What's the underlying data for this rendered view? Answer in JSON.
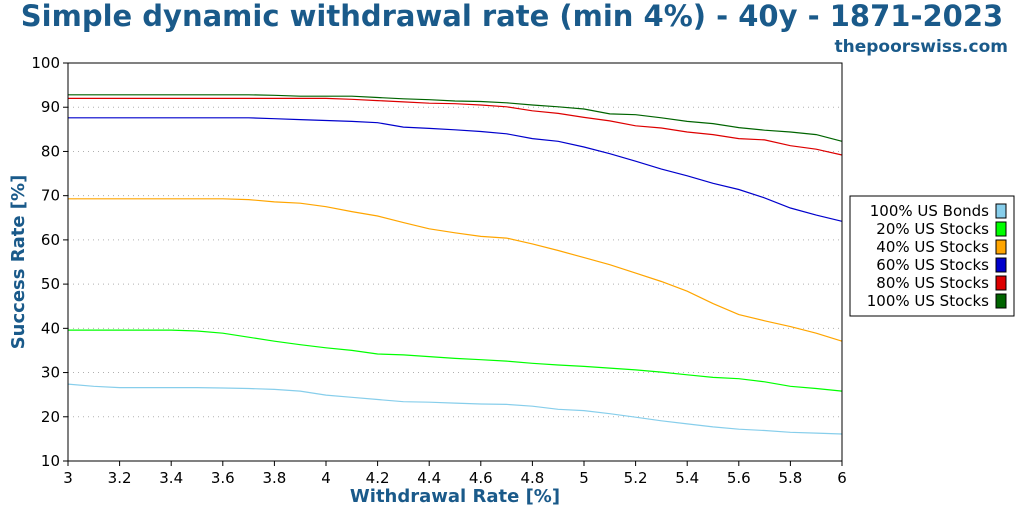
{
  "title": "Simple dynamic withdrawal rate (min 4%) - 40y - 1871-2023",
  "site": "thepoorswiss.com",
  "chart_data": {
    "type": "line",
    "title": "Simple dynamic withdrawal rate (min 4%) - 40y - 1871-2023",
    "xlabel": "Withdrawal Rate [%]",
    "ylabel": "Success Rate [%]",
    "xlim": [
      3,
      6
    ],
    "ylim": [
      10,
      100
    ],
    "xticks": [
      "3",
      "3.2",
      "3.4",
      "3.6",
      "3.8",
      "4",
      "4.2",
      "4.4",
      "4.6",
      "4.8",
      "5",
      "5.2",
      "5.4",
      "5.6",
      "5.8",
      "6"
    ],
    "yticks": [
      "10",
      "20",
      "30",
      "40",
      "50",
      "60",
      "70",
      "80",
      "90",
      "100"
    ],
    "grid": "horizontal dotted",
    "legend_position": "right",
    "x": [
      3.0,
      3.1,
      3.2,
      3.3,
      3.4,
      3.5,
      3.6,
      3.7,
      3.8,
      3.9,
      4.0,
      4.1,
      4.2,
      4.3,
      4.4,
      4.5,
      4.6,
      4.7,
      4.8,
      4.9,
      5.0,
      5.1,
      5.2,
      5.3,
      5.4,
      5.5,
      5.6,
      5.7,
      5.8,
      5.9,
      6.0
    ],
    "series": [
      {
        "name": "100% US Bonds",
        "color": "#87ceeb",
        "values": [
          27.4,
          26.9,
          26.6,
          26.6,
          26.6,
          26.6,
          26.5,
          26.4,
          26.2,
          25.8,
          24.9,
          24.4,
          23.9,
          23.4,
          23.3,
          23.1,
          22.9,
          22.8,
          22.4,
          21.7,
          21.4,
          20.7,
          19.9,
          19.1,
          18.4,
          17.7,
          17.2,
          16.9,
          16.5,
          16.3,
          16.1
        ]
      },
      {
        "name": "20% US Stocks",
        "color": "#00ff00",
        "values": [
          39.6,
          39.6,
          39.6,
          39.6,
          39.6,
          39.4,
          38.9,
          38.0,
          37.1,
          36.3,
          35.6,
          35.0,
          34.2,
          34.0,
          33.6,
          33.2,
          32.9,
          32.6,
          32.1,
          31.7,
          31.4,
          31.0,
          30.6,
          30.1,
          29.5,
          28.9,
          28.6,
          27.9,
          26.9,
          26.4,
          25.8
        ]
      },
      {
        "name": "40% US Stocks",
        "color": "#ffa500",
        "values": [
          69.3,
          69.3,
          69.3,
          69.3,
          69.3,
          69.3,
          69.3,
          69.1,
          68.6,
          68.3,
          67.5,
          66.4,
          65.4,
          63.9,
          62.5,
          61.6,
          60.8,
          60.4,
          59.1,
          57.6,
          56.0,
          54.4,
          52.5,
          50.6,
          48.4,
          45.6,
          43.1,
          41.7,
          40.4,
          38.9,
          37.1
        ]
      },
      {
        "name": "60% US Stocks",
        "color": "#0000cc",
        "values": [
          87.6,
          87.6,
          87.6,
          87.6,
          87.6,
          87.6,
          87.6,
          87.6,
          87.4,
          87.2,
          87.0,
          86.8,
          86.5,
          85.5,
          85.2,
          84.9,
          84.5,
          84.0,
          82.9,
          82.3,
          81.0,
          79.5,
          77.8,
          76.0,
          74.5,
          72.8,
          71.4,
          69.5,
          67.2,
          65.6,
          64.2
        ]
      },
      {
        "name": "80% US Stocks",
        "color": "#dd0000",
        "values": [
          92.0,
          92.0,
          92.0,
          92.0,
          92.0,
          92.0,
          92.0,
          92.0,
          92.0,
          92.0,
          92.0,
          91.8,
          91.5,
          91.2,
          90.9,
          90.8,
          90.5,
          90.1,
          89.2,
          88.6,
          87.7,
          86.9,
          85.8,
          85.3,
          84.4,
          83.8,
          82.9,
          82.6,
          81.3,
          80.5,
          79.2
        ]
      },
      {
        "name": "100% US Stocks",
        "color": "#006400",
        "values": [
          92.8,
          92.8,
          92.8,
          92.8,
          92.8,
          92.8,
          92.8,
          92.8,
          92.7,
          92.5,
          92.5,
          92.5,
          92.2,
          91.9,
          91.7,
          91.4,
          91.3,
          91.0,
          90.5,
          90.1,
          89.6,
          88.5,
          88.3,
          87.6,
          86.8,
          86.3,
          85.4,
          84.8,
          84.4,
          83.8,
          82.3
        ]
      }
    ]
  }
}
